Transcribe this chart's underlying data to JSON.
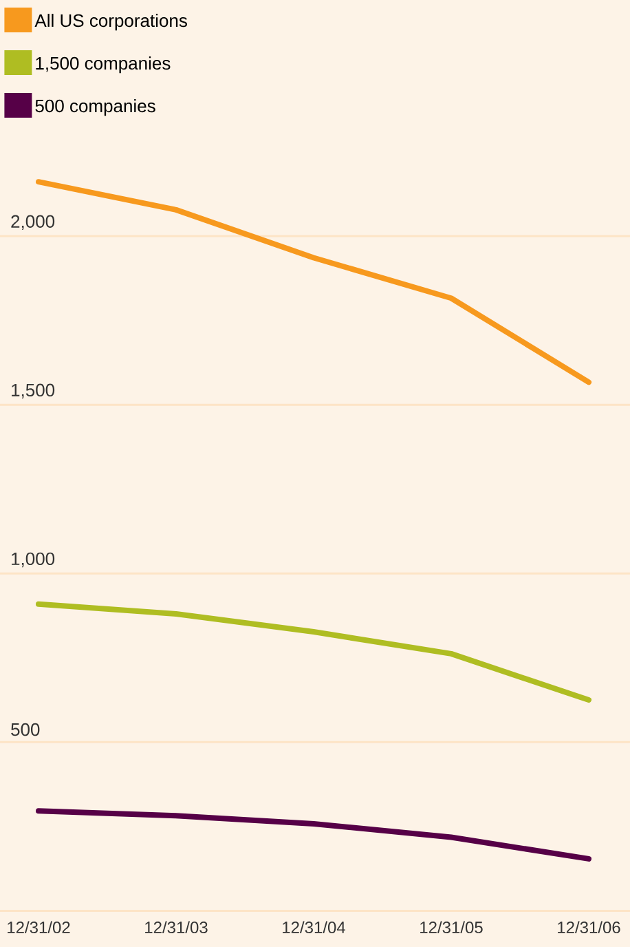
{
  "chart_data": {
    "type": "line",
    "categories": [
      "12/31/02",
      "12/31/03",
      "12/31/04",
      "12/31/05",
      "12/31/06"
    ],
    "series": [
      {
        "name": "All US corporations",
        "color": "#f7991e",
        "values": [
          2161,
          2078,
          1936,
          1816,
          1567
        ]
      },
      {
        "name": "1,500 companies",
        "color": "#afbd22",
        "values": [
          909,
          880,
          827,
          762,
          625
        ]
      },
      {
        "name": "500 companies",
        "color": "#560047",
        "values": [
          296,
          282,
          258,
          218,
          154
        ]
      }
    ],
    "ylim": [
      0,
      2700
    ],
    "yticks": [
      {
        "value": 0,
        "label": null
      },
      {
        "value": 500,
        "label": "500"
      },
      {
        "value": 1000,
        "label": "1,000"
      },
      {
        "value": 1500,
        "label": "1,500"
      },
      {
        "value": 2000,
        "label": "2,000"
      }
    ],
    "grid": "y",
    "legend": "top left",
    "marker": "none",
    "line_style": "solid"
  }
}
